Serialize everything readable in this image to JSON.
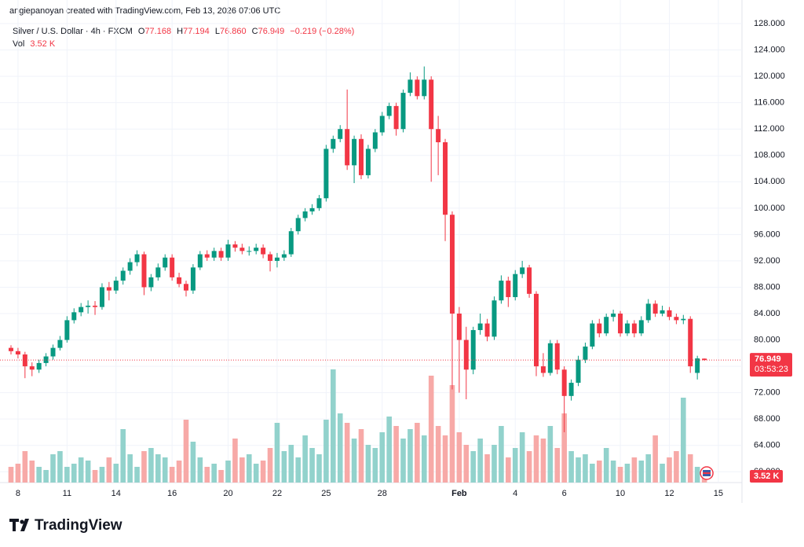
{
  "header": "angiepanoyan created with TradingView.com, Feb 13, 2026 07:06 UTC",
  "brand": "TradingView",
  "chart_data": {
    "type": "candlestick",
    "legend": {
      "symbol": "Silver / U.S. Dollar · 4h · FXCM",
      "o_label": "O",
      "open": "77.168",
      "h_label": "H",
      "high": "77.194",
      "l_label": "L",
      "low": "76.860",
      "c_label": "C",
      "close": "76.949",
      "change": "−0.219 (−0.28%)",
      "vol_label": "Vol",
      "volume": "3.52 K"
    },
    "countdown": "03:53:23",
    "up_color": "#089981",
    "down_color": "#f23645",
    "volume_up_color": "#92d2cc",
    "volume_down_color": "#f7a9a7",
    "grid": true,
    "ylim": [
      58.6,
      129.2
    ],
    "yticks": [
      {
        "value": 60,
        "label": "60.000"
      },
      {
        "value": 64,
        "label": "64.000"
      },
      {
        "value": 68,
        "label": "68.000"
      },
      {
        "value": 72,
        "label": "72.000"
      },
      {
        "value": 76,
        "label": "76.000"
      },
      {
        "value": 80,
        "label": "80.000"
      },
      {
        "value": 84,
        "label": "84.000"
      },
      {
        "value": 88,
        "label": "88.000"
      },
      {
        "value": 92,
        "label": "92.000"
      },
      {
        "value": 96,
        "label": "96.000"
      },
      {
        "value": 100,
        "label": "100.000"
      },
      {
        "value": 104,
        "label": "104.000"
      },
      {
        "value": 108,
        "label": "108.000"
      },
      {
        "value": 112,
        "label": "112.000"
      },
      {
        "value": 116,
        "label": "116.000"
      },
      {
        "value": 120,
        "label": "120.000"
      },
      {
        "value": 124,
        "label": "124.000"
      },
      {
        "value": 128,
        "label": "128.000"
      }
    ],
    "categories": [
      null,
      "8",
      null,
      null,
      null,
      null,
      null,
      null,
      "11",
      null,
      null,
      null,
      null,
      null,
      null,
      "14",
      null,
      null,
      null,
      null,
      null,
      null,
      null,
      "16",
      null,
      null,
      null,
      null,
      null,
      null,
      null,
      "20",
      null,
      null,
      null,
      null,
      null,
      null,
      "22",
      null,
      null,
      null,
      null,
      null,
      null,
      "25",
      null,
      null,
      null,
      null,
      null,
      null,
      null,
      "28",
      null,
      null,
      null,
      null,
      null,
      null,
      null,
      null,
      null,
      null,
      "Feb",
      null,
      null,
      null,
      null,
      null,
      null,
      null,
      "4",
      null,
      null,
      null,
      null,
      null,
      null,
      "6",
      null,
      null,
      null,
      null,
      null,
      null,
      null,
      "10",
      null,
      null,
      null,
      null,
      null,
      null,
      "12",
      null,
      null,
      null,
      null,
      null,
      null,
      "15",
      null
    ],
    "open": [
      78.8,
      78.3,
      77.8,
      76.0,
      75.5,
      76.5,
      77.5,
      78.8,
      80.0,
      83.0,
      84.2,
      85.0,
      85.2,
      85.0,
      88.0,
      87.5,
      89.0,
      90.5,
      91.8,
      93.0,
      88.0,
      89.5,
      91.0,
      92.5,
      89.5,
      88.5,
      87.5,
      91.0,
      93.0,
      92.5,
      93.5,
      92.5,
      94.5,
      94.0,
      93.5,
      93.5,
      94.0,
      93.0,
      92.0,
      92.5,
      93.0,
      96.5,
      98.5,
      99.5,
      100.0,
      101.5,
      109.0,
      110.5,
      112.0,
      106.5,
      110.5,
      105.0,
      109.0,
      111.5,
      114.0,
      115.5,
      112.0,
      117.5,
      119.5,
      117.0,
      119.5,
      112.0,
      110.0,
      99.0,
      84.0,
      80.0,
      75.5,
      81.5,
      82.5,
      80.5,
      86.0,
      89.0,
      86.5,
      90.0,
      91.0,
      87.0,
      76.0,
      75.0,
      79.5,
      75.5,
      71.5,
      73.5,
      77.0,
      79.0,
      82.5,
      81.0,
      83.5,
      84.0,
      81.0,
      82.5,
      81.0,
      83.0,
      85.5,
      84.0,
      84.5,
      83.5,
      83.0,
      83.2,
      75.0,
      77.168,
      null,
      null,
      null
    ],
    "high": [
      79.2,
      78.8,
      78.2,
      76.6,
      77.0,
      78.0,
      79.3,
      80.6,
      83.6,
      84.8,
      85.6,
      86.0,
      85.9,
      88.6,
      88.8,
      89.6,
      91.0,
      92.4,
      93.6,
      93.4,
      90.0,
      91.6,
      93.0,
      93.0,
      90.2,
      89.0,
      91.5,
      93.5,
      93.6,
      94.0,
      94.0,
      95.2,
      95.0,
      94.6,
      94.2,
      94.6,
      94.5,
      93.4,
      93.2,
      93.6,
      97.0,
      99.0,
      100.0,
      100.6,
      102.0,
      109.6,
      111.0,
      112.6,
      118.0,
      111.0,
      111.2,
      109.6,
      112.0,
      114.6,
      116.0,
      116.0,
      118.0,
      120.6,
      120.0,
      121.5,
      120.0,
      114.0,
      110.5,
      99.5,
      85.0,
      82.0,
      82.0,
      84.0,
      83.2,
      86.6,
      89.8,
      89.6,
      90.6,
      92.0,
      91.4,
      87.4,
      78.0,
      80.0,
      80.0,
      76.0,
      74.0,
      77.6,
      79.6,
      83.0,
      83.2,
      84.0,
      84.6,
      84.4,
      83.0,
      83.0,
      83.6,
      86.2,
      86.0,
      85.2,
      85.0,
      84.0,
      83.8,
      83.6,
      77.6,
      77.194,
      null,
      null,
      null
    ],
    "low": [
      77.8,
      77.2,
      74.2,
      74.5,
      75.0,
      76.0,
      77.0,
      78.4,
      79.6,
      82.5,
      83.6,
      84.0,
      83.8,
      84.6,
      86.0,
      87.0,
      88.4,
      89.9,
      91.2,
      86.8,
      87.4,
      89.0,
      90.5,
      89.0,
      88.0,
      86.6,
      87.0,
      90.6,
      92.0,
      92.0,
      92.0,
      92.0,
      93.4,
      93.0,
      92.8,
      93.0,
      92.4,
      90.4,
      91.0,
      92.0,
      92.6,
      96.0,
      98.0,
      99.0,
      99.6,
      101.0,
      108.4,
      110.0,
      105.8,
      103.8,
      104.4,
      104.5,
      108.5,
      111.0,
      113.5,
      111.0,
      111.5,
      117.0,
      116.5,
      116.5,
      104.0,
      105.0,
      95.0,
      72.5,
      72.0,
      71.0,
      74.8,
      80.8,
      79.8,
      80.0,
      85.5,
      85.0,
      86.0,
      89.4,
      86.4,
      74.5,
      74.4,
      74.6,
      74.8,
      66.0,
      70.8,
      73.0,
      76.5,
      78.6,
      80.4,
      80.6,
      82.8,
      80.5,
      80.6,
      80.4,
      80.6,
      82.6,
      83.5,
      83.6,
      83.0,
      82.4,
      82.4,
      75.0,
      74.0,
      76.86,
      null,
      null,
      null
    ],
    "close": [
      78.3,
      77.8,
      76.0,
      75.5,
      76.5,
      77.5,
      78.8,
      80.0,
      83.0,
      84.2,
      85.0,
      85.2,
      85.0,
      88.0,
      87.5,
      89.0,
      90.5,
      91.8,
      93.0,
      88.0,
      89.5,
      91.0,
      92.5,
      89.5,
      88.5,
      87.5,
      91.0,
      93.0,
      92.5,
      93.5,
      92.5,
      94.5,
      94.0,
      93.5,
      93.5,
      94.0,
      93.0,
      92.0,
      92.5,
      93.0,
      96.5,
      98.5,
      99.5,
      100.0,
      101.5,
      109.0,
      110.5,
      112.0,
      106.5,
      110.5,
      105.0,
      109.0,
      111.5,
      114.0,
      115.5,
      112.0,
      117.5,
      119.5,
      117.0,
      119.5,
      112.0,
      110.0,
      99.0,
      84.0,
      80.0,
      75.5,
      81.5,
      82.5,
      80.5,
      86.0,
      89.0,
      86.5,
      90.0,
      91.0,
      87.0,
      76.0,
      75.0,
      79.5,
      75.5,
      71.5,
      73.5,
      77.0,
      79.0,
      82.5,
      81.0,
      83.5,
      84.0,
      81.0,
      82.5,
      81.0,
      83.0,
      85.5,
      84.0,
      84.5,
      83.5,
      83.0,
      83.2,
      76.0,
      77.2,
      76.949,
      null,
      null,
      null
    ],
    "volume": [
      5,
      6,
      10,
      7,
      5,
      4,
      9,
      10,
      5,
      6,
      8,
      7,
      4,
      5,
      8,
      6,
      17,
      9,
      5,
      10,
      11,
      9,
      8,
      5,
      7,
      20,
      13,
      8,
      5,
      6,
      4,
      7,
      14,
      8,
      9,
      6,
      7,
      11,
      19,
      10,
      12,
      8,
      15,
      11,
      9,
      20,
      36,
      22,
      19,
      14,
      17,
      12,
      11,
      16,
      21,
      18,
      14,
      17,
      19,
      15,
      34,
      18,
      15,
      31,
      16,
      12,
      10,
      14,
      9,
      12,
      18,
      8,
      11,
      16,
      10,
      15,
      14,
      18,
      11,
      22,
      10,
      8,
      9,
      6,
      7,
      11,
      7,
      5,
      6,
      8,
      7,
      9,
      15,
      6,
      8,
      10,
      27,
      9,
      5,
      3.52,
      null,
      null,
      null
    ]
  }
}
